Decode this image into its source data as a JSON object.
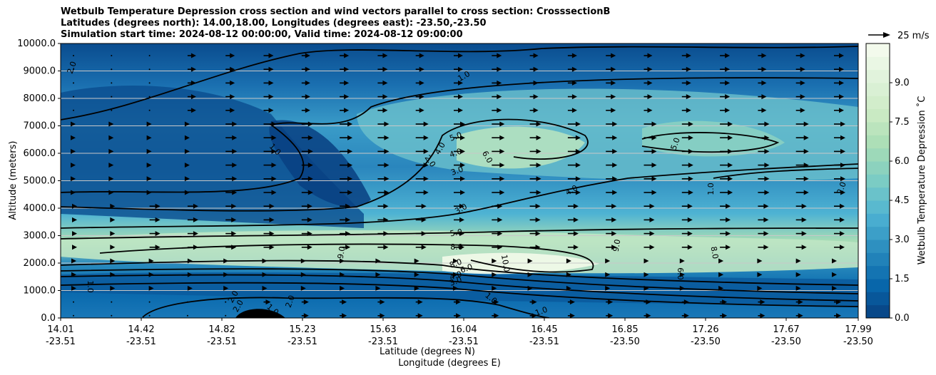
{
  "chart_data": {
    "type": "contour",
    "title_lines": [
      "Wetbulb Temperature Depression cross section and wind vectors parallel to cross section: CrosssectionB",
      "Latitudes (degrees north): 14.00,18.00, Longitudes (degrees east): -23.50,-23.50",
      "Simulation start time: 2024-08-12 00:00:00, Valid time: 2024-08-12 09:00:00"
    ],
    "ylabel": "Altitude (meters)",
    "xlabel_lines": [
      "Latitude (degrees N)",
      "Longitude (degrees E)"
    ],
    "ylim": [
      0,
      10000
    ],
    "y_ticks": [
      "0.0",
      "1000.0",
      "2000.0",
      "3000.0",
      "4000.0",
      "5000.0",
      "6000.0",
      "7000.0",
      "8000.0",
      "9000.0",
      "10000.0"
    ],
    "x_ticks": [
      {
        "lat": "14.01",
        "lon": "-23.51"
      },
      {
        "lat": "14.42",
        "lon": "-23.51"
      },
      {
        "lat": "14.82",
        "lon": "-23.51"
      },
      {
        "lat": "15.23",
        "lon": "-23.51"
      },
      {
        "lat": "15.63",
        "lon": "-23.51"
      },
      {
        "lat": "16.04",
        "lon": "-23.51"
      },
      {
        "lat": "16.45",
        "lon": "-23.51"
      },
      {
        "lat": "16.85",
        "lon": "-23.50"
      },
      {
        "lat": "17.26",
        "lon": "-23.50"
      },
      {
        "lat": "17.67",
        "lon": "-23.50"
      },
      {
        "lat": "17.99",
        "lon": "-23.50"
      }
    ],
    "grid": "horizontal",
    "colorbar": {
      "label": "Wetbulb Temperature Depression ˚C",
      "range": [
        0,
        10.5
      ],
      "ticks": [
        "0.0",
        "1.5",
        "3.0",
        "4.5",
        "6.0",
        "7.5",
        "9.0"
      ],
      "colormap": [
        "#084081",
        "#0868ac",
        "#2b8cbe",
        "#4eb3d3",
        "#7bccc4",
        "#a8ddb5",
        "#ccebc5",
        "#e0f3db",
        "#f7fcf0"
      ]
    },
    "quiver_key": {
      "label": "25 m/s"
    },
    "contour_labels": [
      "2.0",
      "1.0",
      "1.0",
      "2.0",
      "5.0",
      "4.0",
      "6.0",
      "5.0",
      "4.0",
      "3.0",
      "2.0",
      "4.0",
      "3.0",
      "5.0",
      "8.0",
      "9.0",
      "8.0",
      "6.0",
      "4.0",
      "3.0",
      "2.0",
      "1.0",
      "10.0",
      "9.0",
      "8.0",
      "6.0",
      "1.0",
      "2.0",
      "1.0",
      "2.0",
      "1.0",
      "1.0"
    ]
  }
}
